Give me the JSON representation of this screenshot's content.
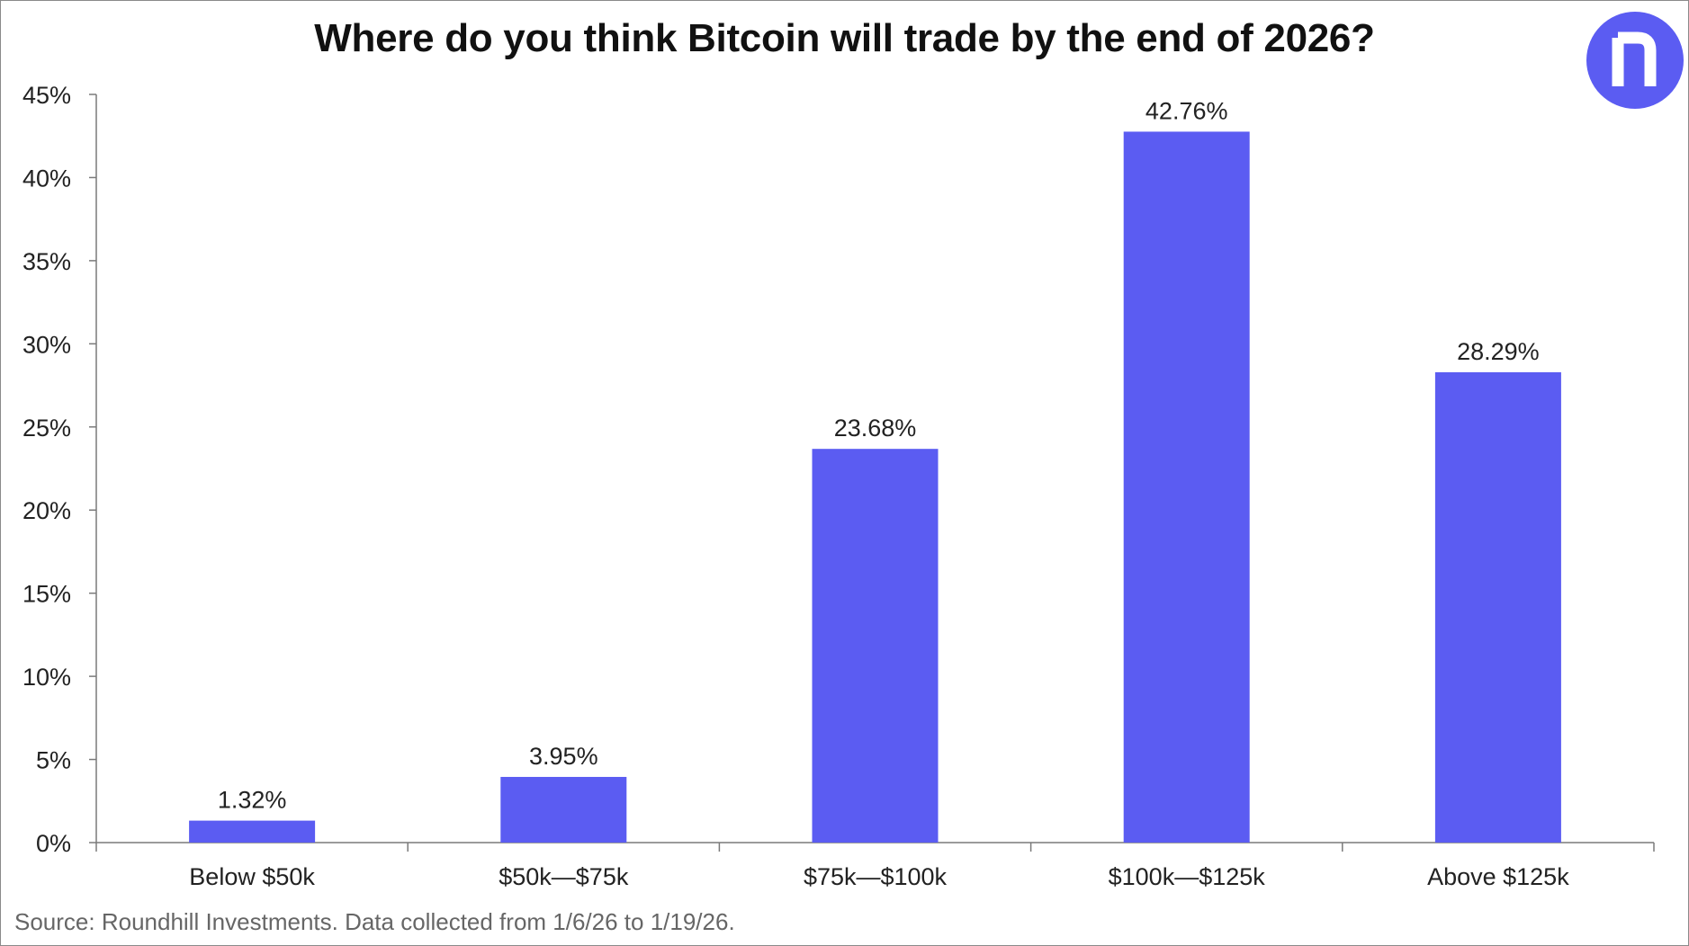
{
  "chart_data": {
    "type": "bar",
    "title": "Where do you think Bitcoin will trade by the end of 2026?",
    "categories": [
      "Below $50k",
      "$50k—$75k",
      "$75k—$100k",
      "$100k—$125k",
      "Above $125k"
    ],
    "values": [
      1.32,
      3.95,
      23.68,
      42.76,
      28.29
    ],
    "data_labels": [
      "1.32%",
      "3.95%",
      "23.68%",
      "42.76%",
      "28.29%"
    ],
    "y_ticks": [
      0,
      5,
      10,
      15,
      20,
      25,
      30,
      35,
      40,
      45
    ],
    "y_tick_labels": [
      "0%",
      "5%",
      "10%",
      "15%",
      "20%",
      "25%",
      "30%",
      "35%",
      "40%",
      "45%"
    ],
    "ylim": [
      0,
      45
    ],
    "xlabel": "",
    "ylabel": "",
    "grid": false,
    "legend": "none",
    "bar_color": "#5b5cf2"
  },
  "source": "Source: Roundhill Investments. Data collected from 1/6/26 to 1/19/26.",
  "logo": {
    "icon": "roundhill-logo-icon",
    "color": "#5b5cf2"
  }
}
